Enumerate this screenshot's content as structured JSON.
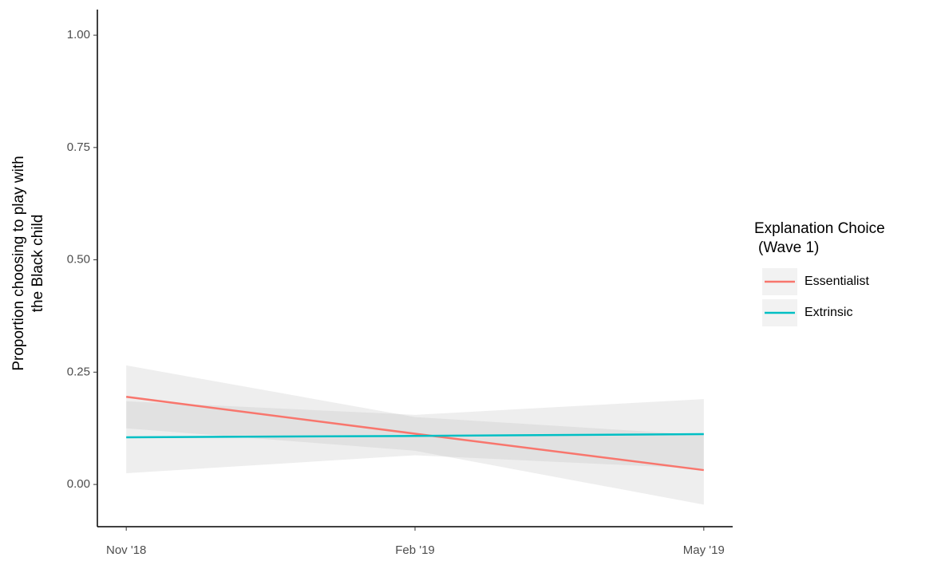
{
  "chart_data": {
    "type": "line",
    "y_label": [
      "Proportion choosing to play with",
      "the Black child"
    ],
    "categories": [
      "Nov '18",
      "Feb '19",
      "May '19"
    ],
    "series": [
      {
        "name": "Essentialist",
        "color": "#f8766d",
        "values": [
          0.195,
          0.113,
          0.032
        ],
        "ci_lower": [
          0.125,
          0.075,
          -0.045
        ],
        "ci_upper": [
          0.265,
          0.15,
          0.11
        ]
      },
      {
        "name": "Extrinsic",
        "color": "#00bfc4",
        "values": [
          0.105,
          0.108,
          0.112
        ],
        "ci_lower": [
          0.025,
          0.065,
          0.035
        ],
        "ci_upper": [
          0.185,
          0.155,
          0.19
        ]
      }
    ],
    "ylim": [
      -0.094,
      1.057
    ],
    "yticks": [
      {
        "value": 0,
        "label": "0.00"
      },
      {
        "value": 0.25,
        "label": "0.25"
      },
      {
        "value": 0.5,
        "label": "0.50"
      },
      {
        "value": 0.75,
        "label": "0.75"
      },
      {
        "value": 1,
        "label": "1.00"
      }
    ],
    "legend_title": [
      "Explanation Choice",
      "(Wave 1)"
    ],
    "legend_position": "right",
    "ribbon_color": "#bdbdbd"
  }
}
